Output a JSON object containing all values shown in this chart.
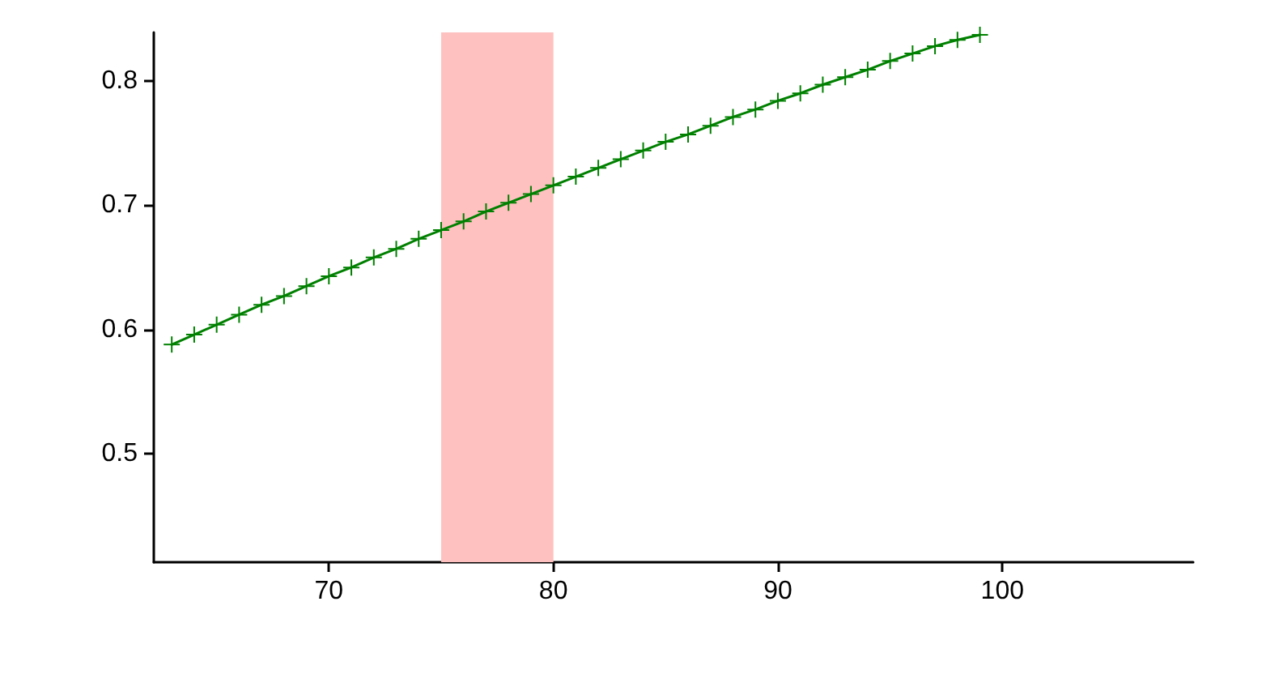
{
  "chart_data": {
    "type": "line",
    "x": [
      63,
      64,
      65,
      66,
      67,
      68,
      69,
      70,
      71,
      72,
      73,
      74,
      75,
      76,
      77,
      78,
      79,
      80,
      81,
      82,
      83,
      84,
      85,
      86,
      87,
      88,
      89,
      90,
      91,
      92,
      93,
      94,
      95,
      96,
      97,
      98,
      99
    ],
    "series": [
      {
        "color": "#008000",
        "values": [
          0.588,
          0.596,
          0.604,
          0.612,
          0.62,
          0.627,
          0.635,
          0.643,
          0.65,
          0.658,
          0.665,
          0.673,
          0.68,
          0.687,
          0.695,
          0.702,
          0.709,
          0.716,
          0.723,
          0.73,
          0.737,
          0.744,
          0.751,
          0.757,
          0.764,
          0.771,
          0.777,
          0.784,
          0.79,
          0.797,
          0.803,
          0.809,
          0.816,
          0.822,
          0.828,
          0.833,
          0.837
        ]
      }
    ],
    "xlim": [
      62.2,
      108.5
    ],
    "ylim": [
      0.413,
      0.839
    ],
    "xticks": [
      70,
      80,
      90,
      100
    ],
    "yticks": [
      0.5,
      0.6,
      0.7,
      0.8
    ],
    "bands": [
      {
        "axis": "x",
        "from": 75,
        "to": 80,
        "color": "#ffc0c0"
      }
    ],
    "grid": false,
    "marker": "cross",
    "line_style": "solid"
  }
}
